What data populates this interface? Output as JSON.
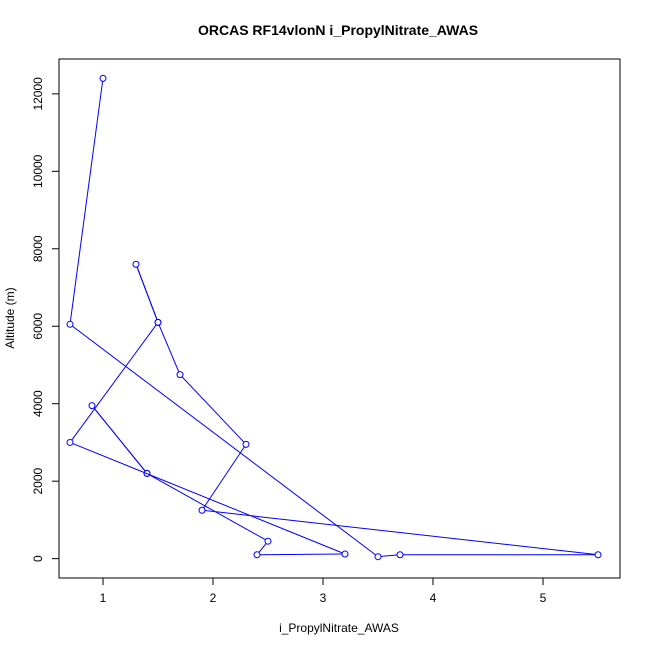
{
  "chart_data": {
    "type": "line",
    "title": "ORCAS RF14vlonN i_PropylNitrate_AWAS",
    "xlabel": "i_PropylNitrate_AWAS",
    "ylabel": "Altitude (m)",
    "xlim": [
      0.6,
      5.7
    ],
    "ylim": [
      -500,
      12900
    ],
    "xticks": [
      1,
      2,
      3,
      4,
      5
    ],
    "yticks": [
      0,
      2000,
      4000,
      6000,
      8000,
      10000,
      12000
    ],
    "grid": false,
    "series": [
      {
        "color": "#0000ff",
        "marker": "open-circle",
        "points": [
          {
            "x": 1.0,
            "y": 12400
          },
          {
            "x": 0.7,
            "y": 6050
          },
          {
            "x": 3.5,
            "y": 50
          },
          {
            "x": 3.7,
            "y": 100
          },
          {
            "x": 5.5,
            "y": 100
          },
          {
            "x": 1.9,
            "y": 1250
          },
          {
            "x": 2.3,
            "y": 2950
          },
          {
            "x": 1.7,
            "y": 4750
          },
          {
            "x": 1.5,
            "y": 6100
          },
          {
            "x": 1.3,
            "y": 7600
          },
          {
            "x": 1.5,
            "y": 6100
          },
          {
            "x": 0.7,
            "y": 3000
          },
          {
            "x": 3.2,
            "y": 120
          },
          {
            "x": 2.4,
            "y": 100
          },
          {
            "x": 2.5,
            "y": 450
          },
          {
            "x": 1.4,
            "y": 2200
          },
          {
            "x": 0.9,
            "y": 3950
          },
          {
            "x": 1.4,
            "y": 2200
          }
        ]
      }
    ]
  }
}
